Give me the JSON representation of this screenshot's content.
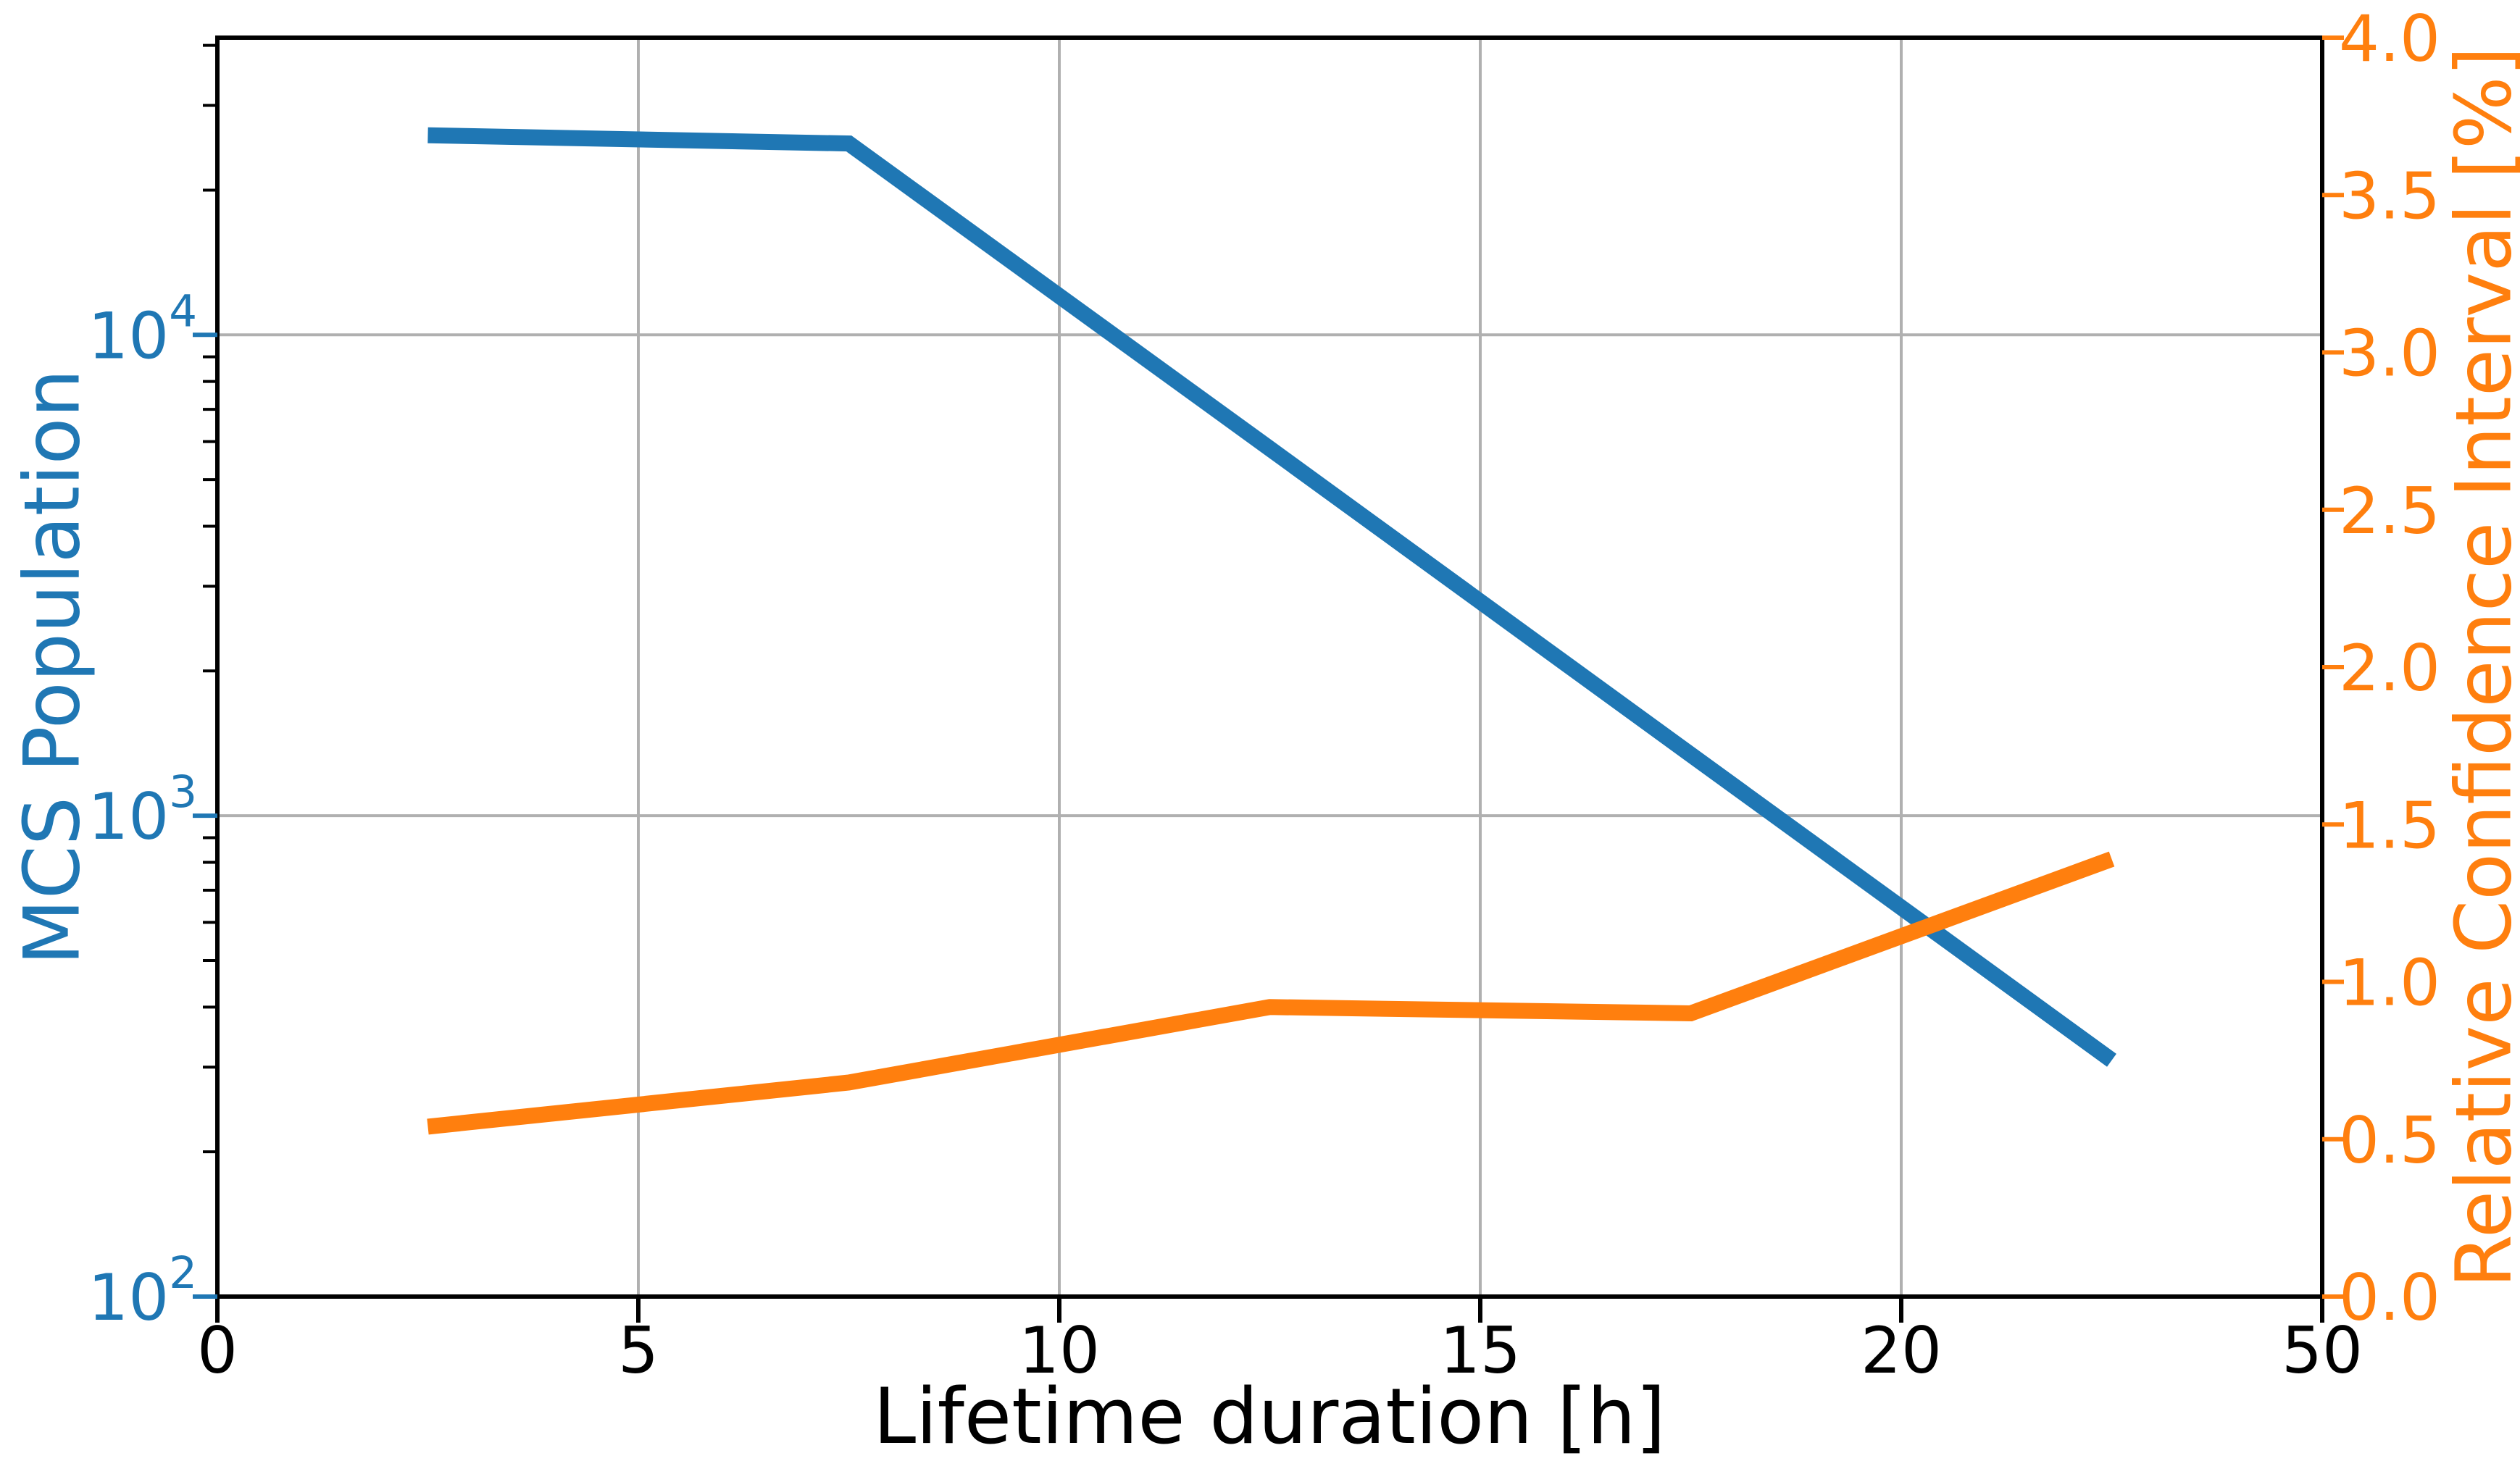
{
  "chart_data": {
    "type": "line",
    "title": "",
    "x_axis": {
      "label": "Lifetime duration [h]",
      "tick_values": [
        0,
        5,
        10,
        15,
        20,
        50
      ],
      "tick_labels": [
        "0",
        "5",
        "10",
        "15",
        "20",
        "50"
      ],
      "spacing": "ticks-evenly-spaced"
    },
    "y_axis_left": {
      "label": "MCS Population",
      "scale": "log",
      "range": [
        100,
        41500
      ],
      "tick_exponents": [
        2,
        3,
        4
      ],
      "tick_base": "10",
      "color": "#1f77b4"
    },
    "y_axis_right": {
      "label": "Relative Confidence Interval [%]",
      "scale": "linear",
      "range": [
        0,
        4
      ],
      "ticks": [
        0.0,
        0.5,
        1.0,
        1.5,
        2.0,
        2.5,
        3.0,
        3.5,
        4.0
      ],
      "color": "#ff7f0e"
    },
    "x": [
      2.5,
      7.5,
      12.5,
      17.5,
      35
    ],
    "series": [
      {
        "name": "MCS Population",
        "axis": "left",
        "color": "#1f77b4",
        "values": [
          26000,
          25000,
          5800,
          1340,
          310
        ]
      },
      {
        "name": "Relative Confidence Interval [%]",
        "axis": "right",
        "color": "#ff7f0e",
        "values": [
          0.54,
          0.68,
          0.92,
          0.9,
          1.39
        ]
      }
    ],
    "grid": {
      "on": true,
      "color": "#b0b0b0"
    },
    "legend_position": "none",
    "spine_color": "#000000",
    "minor_tick_color": "#000000"
  }
}
